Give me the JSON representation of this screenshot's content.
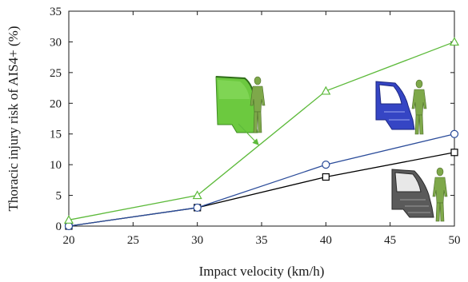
{
  "chart_data": {
    "type": "line",
    "title": "",
    "xlabel": "Impact velocity (km/h)",
    "ylabel": "Thoracic injury risk of AIS4+ (%)",
    "xlim": [
      20,
      50
    ],
    "ylim": [
      0,
      35
    ],
    "xticks": [
      "20",
      "25",
      "30",
      "35",
      "40",
      "45",
      "50"
    ],
    "yticks": [
      "0",
      "5",
      "10",
      "15",
      "20",
      "25",
      "30",
      "35"
    ],
    "x": [
      20,
      30,
      40,
      50
    ],
    "grid": false,
    "legend": "none (vehicle-pedestrian thumbnails identify the series)",
    "series": [
      {
        "marker": "triangle",
        "color": "#5dba3b",
        "values": [
          1,
          5,
          22,
          30
        ]
      },
      {
        "marker": "circle",
        "color": "#2b4c9a",
        "values": [
          0,
          3,
          10,
          15
        ]
      },
      {
        "marker": "square",
        "color": "#000000",
        "values": [
          0,
          3,
          8,
          12
        ]
      }
    ],
    "annotations": [
      {
        "text": "",
        "arrow": true,
        "points_to_series": 0,
        "points_to_x": 34.8
      }
    ],
    "thumbnails": [
      {
        "icon": "green-vehicle-front-with-pedestrian-icon",
        "series": 0,
        "color": "#5dba3b"
      },
      {
        "icon": "blue-vehicle-front-with-pedestrian-icon",
        "series": 1,
        "color": "#2b3fb8"
      },
      {
        "icon": "gray-vehicle-front-with-pedestrian-icon",
        "series": 2,
        "color": "#4a4a4a"
      }
    ]
  }
}
